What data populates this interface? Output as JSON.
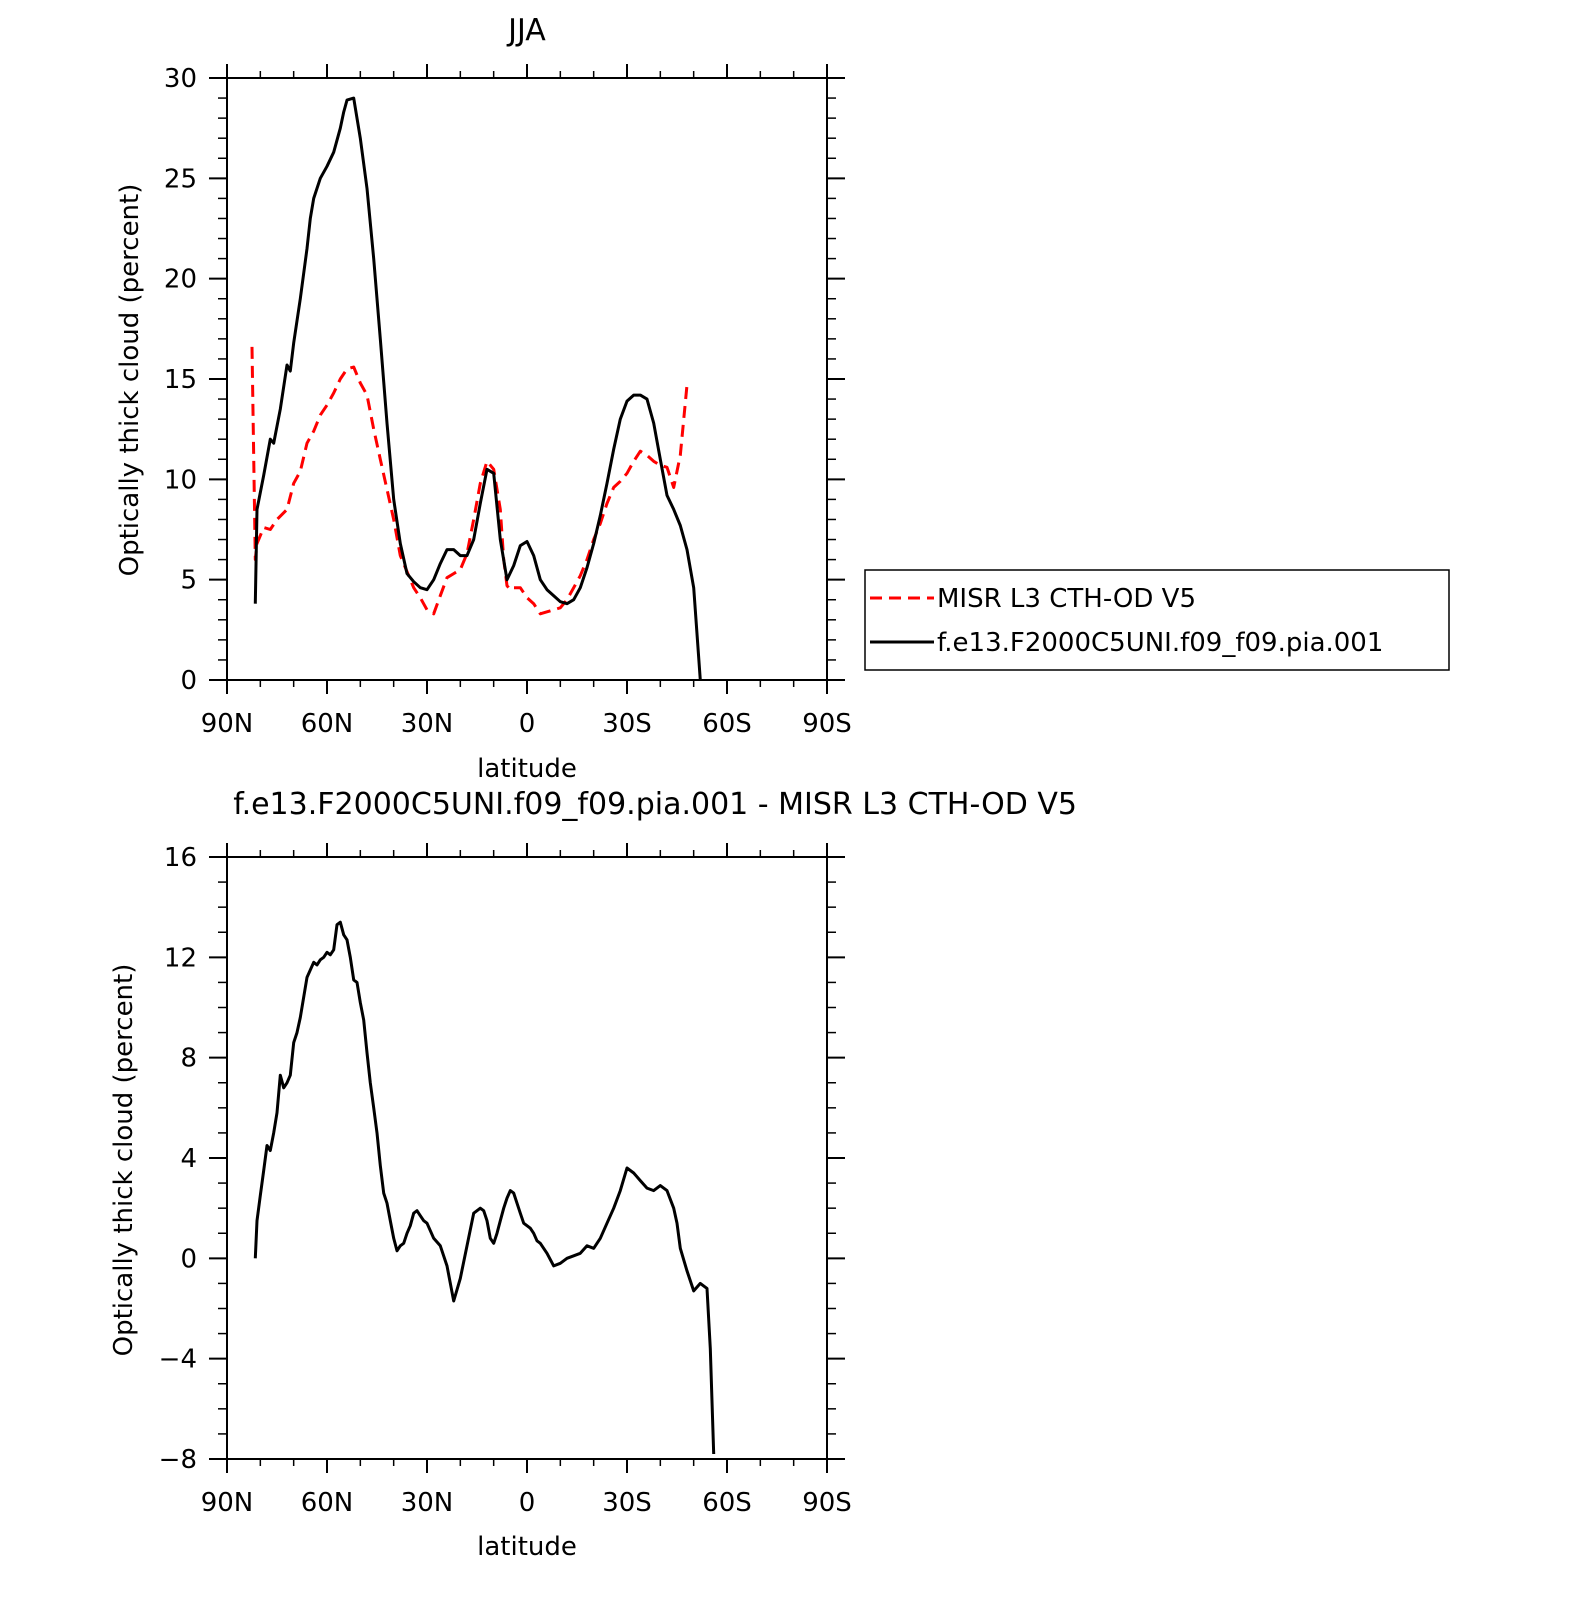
{
  "chart_data": [
    {
      "type": "line",
      "title": "JJA",
      "xlabel": "latitude",
      "ylabel": "Optically thick cloud (percent)",
      "xlim": [
        90,
        -90
      ],
      "ylim": [
        0,
        30
      ],
      "x_ticks": [
        90,
        60,
        30,
        0,
        -30,
        -60,
        -90
      ],
      "x_tick_labels": [
        "90N",
        "60N",
        "30N",
        "0",
        "30S",
        "60S",
        "90S"
      ],
      "y_ticks": [
        0,
        5,
        10,
        15,
        20,
        25,
        30
      ],
      "y_tick_labels": [
        "0",
        "5",
        "10",
        "15",
        "20",
        "25",
        "30"
      ],
      "legend_position": "right",
      "series": [
        {
          "name": "MISR L3 CTH-OD V5",
          "color": "#ff0000",
          "dash": "dashed",
          "x": [
            82.5,
            81.5,
            81,
            79,
            77,
            75,
            72,
            70,
            68,
            66,
            64,
            62,
            60,
            58,
            56,
            54,
            52,
            50,
            48,
            46,
            44,
            42,
            40,
            38,
            36,
            34,
            32,
            30,
            28,
            26,
            24,
            22,
            20,
            18,
            16,
            14,
            12,
            10,
            8,
            7,
            6,
            5,
            4,
            2,
            0,
            -2,
            -4,
            -6,
            -8,
            -10,
            -12,
            -14,
            -16,
            -18,
            -20,
            -22,
            -24,
            -26,
            -28,
            -30,
            -32,
            -34,
            -36,
            -38,
            -40,
            -42,
            -44,
            -46,
            -48,
            -50,
            -52,
            -54,
            -56,
            -58,
            -60,
            -62,
            -63.5
          ],
          "y": [
            16.6,
            6.0,
            6.8,
            7.6,
            7.5,
            8.0,
            8.5,
            9.8,
            10.4,
            11.8,
            12.4,
            13.2,
            13.7,
            14.3,
            15.0,
            15.5,
            15.6,
            14.8,
            14.2,
            12.5,
            11.0,
            9.5,
            8.0,
            6.2,
            5.4,
            4.6,
            4.1,
            3.5,
            3.3,
            4.2,
            5.1,
            5.3,
            5.5,
            6.3,
            8.0,
            9.8,
            10.9,
            10.5,
            8.5,
            6.0,
            4.7,
            4.5,
            4.6,
            4.6,
            4.1,
            3.8,
            3.3,
            3.4,
            3.5,
            3.6,
            4.0,
            4.6,
            5.2,
            6.0,
            7.0,
            7.8,
            8.8,
            9.6,
            9.9,
            10.3,
            10.9,
            11.4,
            11.2,
            10.9,
            10.7,
            10.6,
            9.6,
            11.2,
            14.7,
            null,
            null,
            null,
            null,
            null,
            null,
            null,
            null
          ]
        },
        {
          "name": "f.e13.F2000C5UNI.f09_f09.pia.001",
          "color": "#000000",
          "dash": "solid",
          "x": [
            81.5,
            81,
            79,
            77,
            76,
            74,
            72,
            71,
            70,
            68,
            66,
            65,
            64,
            62,
            60,
            58,
            56,
            55,
            54,
            52,
            50,
            48,
            46,
            44,
            42,
            40,
            38,
            36,
            34,
            32,
            30,
            28,
            26,
            24,
            22,
            20,
            18,
            16,
            14,
            12,
            10,
            8,
            6,
            4,
            2,
            0,
            -2,
            -4,
            -6,
            -8,
            -10,
            -12,
            -14,
            -16,
            -18,
            -20,
            -22,
            -24,
            -26,
            -28,
            -30,
            -32,
            -34,
            -36,
            -38,
            -40,
            -42,
            -44,
            -46,
            -48,
            -50,
            -52,
            -54,
            -56,
            -58,
            -60,
            -62,
            -64,
            -66,
            -67,
            -68
          ],
          "y": [
            3.8,
            8.5,
            10.2,
            12.0,
            11.8,
            13.5,
            15.7,
            15.4,
            16.8,
            19.0,
            21.5,
            23.0,
            24.0,
            25.0,
            25.6,
            26.3,
            27.5,
            28.3,
            28.9,
            29.0,
            27.0,
            24.5,
            21.0,
            17.0,
            12.8,
            9.0,
            6.8,
            5.3,
            4.9,
            4.6,
            4.5,
            5.0,
            5.8,
            6.5,
            6.5,
            6.2,
            6.2,
            7.0,
            8.8,
            10.5,
            10.3,
            7.0,
            5.0,
            5.7,
            6.7,
            6.9,
            6.2,
            5.0,
            4.5,
            4.2,
            3.9,
            3.8,
            4.0,
            4.6,
            5.6,
            6.8,
            8.2,
            9.8,
            11.5,
            13.0,
            13.9,
            14.2,
            14.2,
            14.0,
            12.8,
            11.0,
            9.2,
            8.5,
            7.7,
            6.5,
            4.6,
            0.0,
            null,
            null,
            null,
            null,
            null,
            null,
            null,
            null,
            null
          ]
        }
      ]
    },
    {
      "type": "line",
      "title": "f.e13.F2000C5UNI.f09_f09.pia.001 - MISR L3 CTH-OD V5",
      "xlabel": "latitude",
      "ylabel": "Optically thick cloud (percent)",
      "xlim": [
        90,
        -90
      ],
      "ylim": [
        -8,
        16
      ],
      "x_ticks": [
        90,
        60,
        30,
        0,
        -30,
        -60,
        -90
      ],
      "x_tick_labels": [
        "90N",
        "60N",
        "30N",
        "0",
        "30S",
        "60S",
        "90S"
      ],
      "y_ticks": [
        -8,
        -4,
        0,
        4,
        8,
        12,
        16
      ],
      "y_tick_labels": [
        "−8",
        "−4",
        "0",
        "4",
        "8",
        "12",
        "16"
      ],
      "series": [
        {
          "color": "#000000",
          "dash": "solid",
          "x": [
            81.5,
            81,
            80,
            79,
            78,
            77,
            76,
            75,
            74,
            73,
            72,
            71,
            70,
            69,
            68,
            66,
            64,
            63,
            62,
            61,
            60,
            59,
            58,
            57,
            56,
            55,
            54,
            53,
            52,
            51,
            50,
            49,
            48,
            47,
            46,
            45,
            44,
            43,
            42,
            41,
            40,
            39,
            38,
            37,
            36,
            35,
            34,
            33,
            32,
            31,
            30,
            28,
            26,
            24,
            22,
            20,
            18,
            16,
            14,
            13,
            12,
            11,
            10,
            9,
            8,
            7,
            6,
            5,
            4,
            3,
            2,
            1,
            0,
            -1,
            -2,
            -3,
            -4,
            -6,
            -8,
            -10,
            -12,
            -14,
            -16,
            -18,
            -20,
            -22,
            -24,
            -26,
            -28,
            -30,
            -32,
            -34,
            -36,
            -38,
            -40,
            -42,
            -44,
            -45,
            -46,
            -48,
            -50,
            -52,
            -54,
            -55,
            -56,
            -57,
            -58,
            -59,
            -60,
            -61,
            -62,
            -63,
            -63.5
          ],
          "y": [
            0.0,
            1.5,
            2.5,
            3.5,
            4.5,
            4.3,
            5.0,
            5.8,
            7.3,
            6.8,
            7.0,
            7.3,
            8.6,
            9.0,
            9.6,
            11.2,
            11.8,
            11.7,
            11.9,
            12.0,
            12.2,
            12.1,
            12.3,
            13.3,
            13.4,
            12.9,
            12.7,
            12.0,
            11.1,
            11.0,
            10.2,
            9.5,
            8.2,
            7.0,
            6.0,
            5.0,
            3.7,
            2.6,
            2.2,
            1.5,
            0.8,
            0.3,
            0.5,
            0.6,
            1.0,
            1.3,
            1.8,
            1.9,
            1.7,
            1.5,
            1.4,
            0.8,
            0.5,
            -0.3,
            -1.7,
            -0.8,
            0.5,
            1.8,
            2.0,
            1.9,
            1.5,
            0.8,
            0.6,
            1.0,
            1.5,
            2.0,
            2.4,
            2.7,
            2.6,
            2.2,
            1.8,
            1.4,
            1.3,
            1.2,
            1.0,
            0.7,
            0.6,
            0.2,
            -0.3,
            -0.2,
            0.0,
            0.1,
            0.2,
            0.5,
            0.4,
            0.8,
            1.4,
            2.0,
            2.7,
            3.6,
            3.4,
            3.1,
            2.8,
            2.7,
            2.9,
            2.7,
            2.0,
            1.4,
            0.4,
            -0.5,
            -1.3,
            -1.0,
            -1.2,
            -3.6,
            -7.8,
            null,
            null,
            null,
            null,
            null,
            null,
            null,
            null
          ]
        }
      ]
    }
  ]
}
